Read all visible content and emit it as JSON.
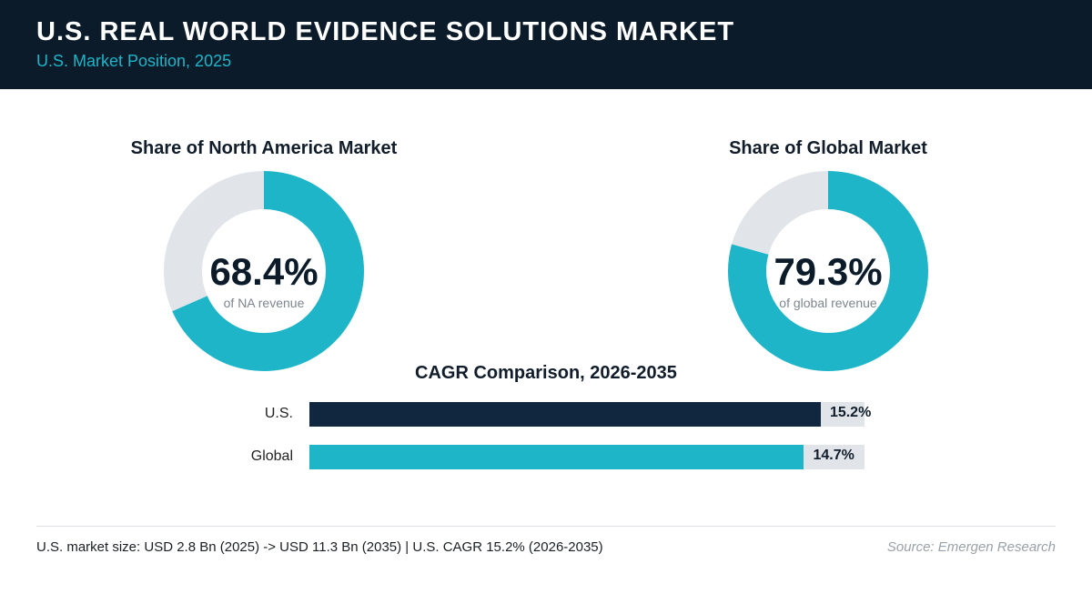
{
  "header": {
    "title": "U.S. REAL WORLD EVIDENCE SOLUTIONS MARKET",
    "subtitle": "U.S. Market Position, 2025"
  },
  "colors": {
    "header_bg": "#0b1b29",
    "accent": "#1fb5c9",
    "navy": "#10273f",
    "track": "#e1e5ea"
  },
  "chart_data": [
    {
      "type": "pie",
      "title": "Share of North America Market",
      "center_value": "68.4%",
      "caption": "of NA revenue",
      "values": [
        68.4,
        31.6
      ],
      "colors": [
        "#1fb5c9",
        "#e1e5ea"
      ]
    },
    {
      "type": "pie",
      "title": "Share of Global Market",
      "center_value": "79.3%",
      "caption": "of global revenue",
      "values": [
        79.3,
        20.7
      ],
      "colors": [
        "#1fb5c9",
        "#e1e5ea"
      ]
    },
    {
      "type": "bar",
      "title": "CAGR Comparison, 2026-2035",
      "categories": [
        "U.S.",
        "Global"
      ],
      "values": [
        15.2,
        14.7
      ],
      "value_labels": [
        "15.2%",
        "14.7%"
      ],
      "colors": [
        "#10273f",
        "#1fb5c9"
      ],
      "xlim": [
        0,
        16.5
      ]
    }
  ],
  "footer": {
    "note": "U.S. market size: USD 2.8 Bn (2025) -> USD 11.3 Bn (2035)  |  U.S. CAGR 15.2% (2026-2035)",
    "source": "Source: Emergen Research"
  }
}
